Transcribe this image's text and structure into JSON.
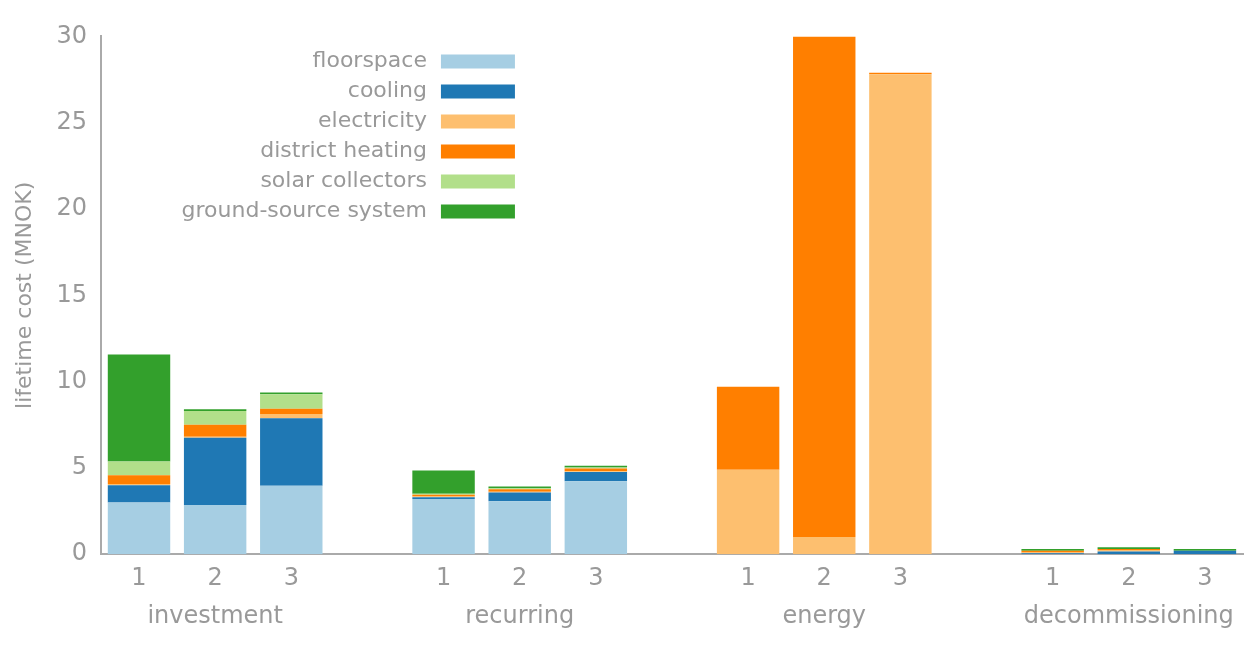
{
  "chart_data": {
    "type": "bar",
    "stacked": true,
    "ylabel": "lifetime cost (MNOK)",
    "categories": [
      "1",
      "2",
      "3",
      null,
      "1",
      "2",
      "3",
      null,
      "1",
      "2",
      "3",
      null,
      "1",
      "2",
      "3"
    ],
    "series": [
      {
        "name": "floorspace",
        "color": "#a6cee3",
        "values": [
          3.0,
          2.85,
          3.97,
          null,
          3.2,
          3.07,
          4.23,
          null,
          0,
          0,
          0,
          null,
          0,
          0,
          0
        ]
      },
      {
        "name": "cooling",
        "color": "#1f78b4",
        "values": [
          1.0,
          3.9,
          3.9,
          null,
          0.1,
          0.5,
          0.53,
          null,
          0,
          0,
          0,
          null,
          0.05,
          0.15,
          0.2
        ]
      },
      {
        "name": "electricity",
        "color": "#fdbf6f",
        "values": [
          0.07,
          0.05,
          0.25,
          null,
          0.05,
          0.05,
          0.05,
          null,
          4.9,
          1.0,
          27.8,
          null,
          0.05,
          0.1,
          0
        ]
      },
      {
        "name": "district heating",
        "color": "#ff7f00",
        "values": [
          0.5,
          0.7,
          0.3,
          null,
          0.1,
          0.15,
          0.15,
          null,
          4.8,
          29.0,
          0.1,
          null,
          0.1,
          0.05,
          0
        ]
      },
      {
        "name": "solar collectors",
        "color": "#b2df8a",
        "values": [
          0.8,
          0.8,
          0.85,
          null,
          0.05,
          0.05,
          0.06,
          null,
          0,
          0,
          0,
          null,
          0,
          0,
          0
        ]
      },
      {
        "name": "ground-source system",
        "color": "#33a02c",
        "values": [
          6.2,
          0.1,
          0.1,
          null,
          1.35,
          0.1,
          0.1,
          null,
          0,
          0,
          0,
          null,
          0.1,
          0.1,
          0.1
        ]
      }
    ],
    "ylim": [
      0,
      30
    ],
    "yticks": [
      0,
      5,
      10,
      15,
      20,
      25,
      30
    ],
    "grid": false,
    "legend": "top left",
    "annotations": [
      "investment",
      "recurring",
      "energy",
      "decommissioning"
    ]
  }
}
